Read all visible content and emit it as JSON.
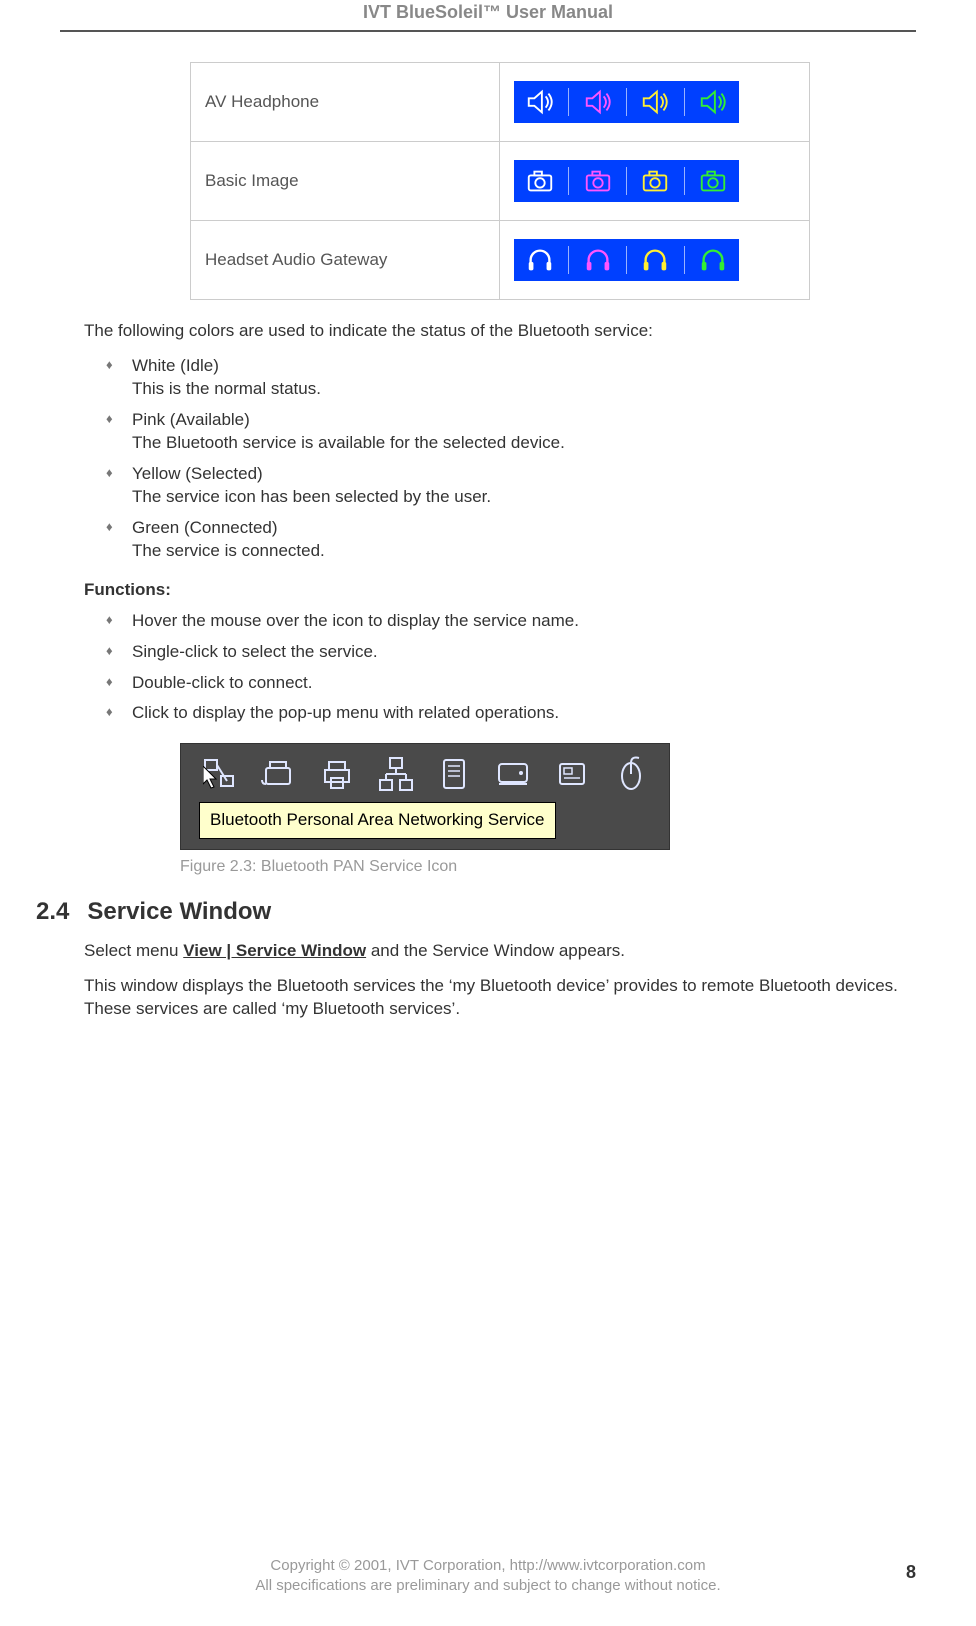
{
  "header": {
    "title": "IVT BlueSoleil™ User Manual"
  },
  "icon_table": {
    "rows": [
      {
        "label": "AV Headphone",
        "icon": "speaker"
      },
      {
        "label": "Basic Image",
        "icon": "camera"
      },
      {
        "label": "Headset Audio Gateway",
        "icon": "headset"
      }
    ],
    "color_order": [
      "#ffffff",
      "#ff55ff",
      "#ffee33",
      "#33ee33"
    ],
    "strip_bg": "#0040ff"
  },
  "intro_para": "The following colors are used to indicate the status of the Bluetooth service:",
  "status_list": [
    {
      "title": "White (Idle)",
      "desc": "This is the normal status."
    },
    {
      "title": "Pink (Available)",
      "desc": "The Bluetooth service is available for the selected device."
    },
    {
      "title": "Yellow (Selected)",
      "desc": "The service icon has been selected by the user."
    },
    {
      "title": "Green (Connected)",
      "desc": "The service is connected."
    }
  ],
  "functions_hdr": "Functions:",
  "functions_list": [
    "Hover the mouse over the icon to display the service name.",
    "Single-click to select the service.",
    "Double-click to connect.",
    "Click to display the pop-up menu with related operations."
  ],
  "screenshot": {
    "toolbar_icons": [
      "network",
      "fax",
      "printer",
      "lan",
      "serial",
      "dialup",
      "card",
      "mouse"
    ],
    "tooltip": "Bluetooth Personal Area Networking Service"
  },
  "caption": "Figure 2.3: Bluetooth PAN Service Icon",
  "section": {
    "num": "2.4",
    "title": "Service Window",
    "p1_pre": "Select menu ",
    "p1_bold": "View | Service Window",
    "p1_post": " and the Service Window appears.",
    "p2": "This window displays the Bluetooth services the ‘my Bluetooth device’ provides to remote Bluetooth devices. These services are called ‘my Bluetooth services’."
  },
  "footer": {
    "line1": "Copyright © 2001, IVT Corporation, http://www.ivtcorporation.com",
    "line2": "All specifications are preliminary and subject to change without notice.",
    "page": "8"
  }
}
